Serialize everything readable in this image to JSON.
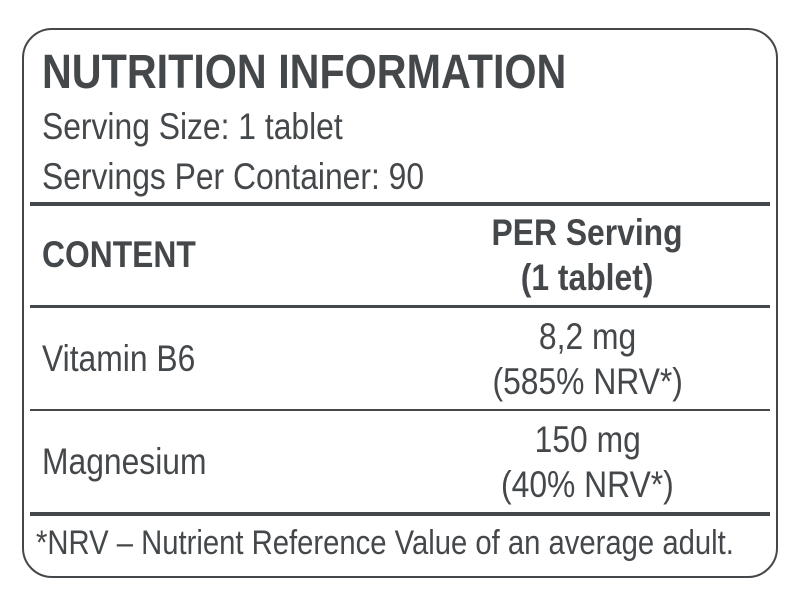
{
  "label": {
    "title": "NUTRITION INFORMATION",
    "serving_size": "Serving Size: 1 tablet",
    "servings_per_container": "Servings Per Container: 90",
    "table": {
      "header": {
        "content": "CONTENT",
        "per_serving_line1": "PER Serving",
        "per_serving_line2": "(1 tablet)"
      },
      "rows": [
        {
          "name": "Vitamin B6",
          "amount": "8,2 mg",
          "nrv": "(585% NRV*)"
        },
        {
          "name": "Magnesium",
          "amount": "150 mg",
          "nrv": "(40% NRV*)"
        }
      ]
    },
    "footnote": "*NRV – Nutrient Reference Value of an average adult.",
    "colors": {
      "text": "#45484b",
      "rule": "#45484b",
      "background": "#ffffff"
    }
  }
}
